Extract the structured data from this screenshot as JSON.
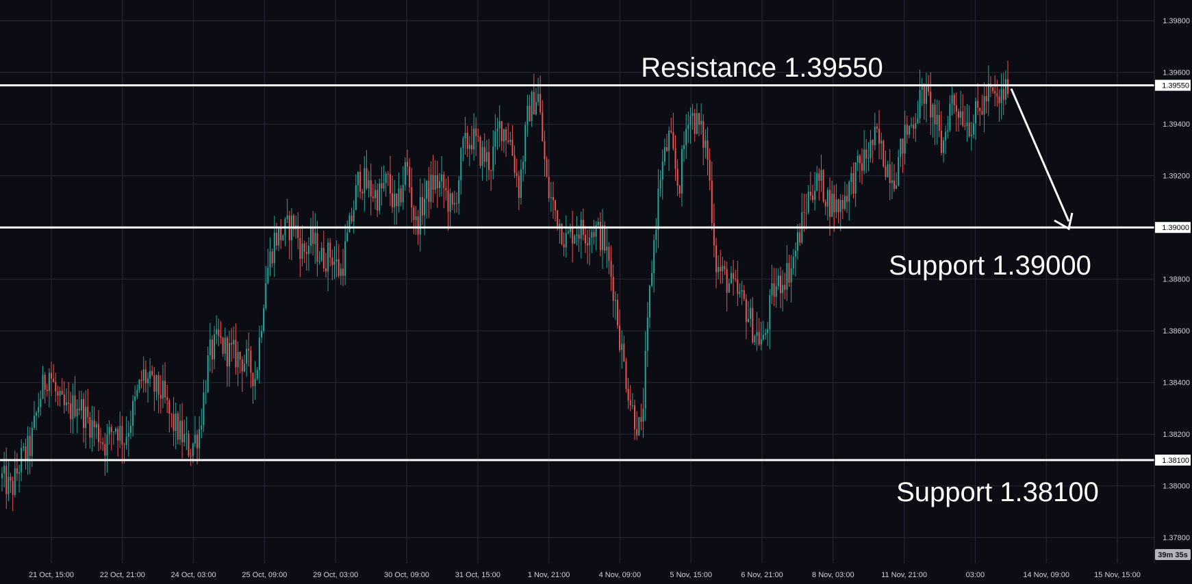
{
  "chart_data": {
    "type": "candlestick",
    "price_axis": {
      "ticks": [
        "1.39800",
        "1.39600",
        "1.39400",
        "1.39200",
        "1.39000",
        "1.38800",
        "1.38600",
        "1.38400",
        "1.38200",
        "1.38000",
        "1.37800"
      ],
      "ylim": [
        1.377,
        1.3988
      ]
    },
    "time_axis": {
      "ticks": [
        "21 Oct, 15:00",
        "22 Oct, 21:00",
        "24 Oct, 03:00",
        "25 Oct, 09:00",
        "29 Oct, 03:00",
        "30 Oct, 09:00",
        "31 Oct, 15:00",
        "1 Nov, 21:00",
        "4 Nov, 09:00",
        "5 Nov, 15:00",
        "6 Nov, 21:00",
        "8 Nov, 03:00",
        "11 Nov, 21:00",
        "03:00",
        "14 Nov, 09:00",
        "15 Nov, 15:00"
      ]
    },
    "levels": [
      {
        "name": "Resistance 1.39550",
        "value": 1.3955,
        "tag": "1.39550"
      },
      {
        "name": "Support 1.39000",
        "value": 1.39,
        "tag": "1.39000"
      },
      {
        "name": "Support 1.38100",
        "value": 1.381,
        "tag": "1.38100"
      }
    ],
    "annotations": {
      "resistance_label": "Resistance 1.39550",
      "support_mid_label": "Support 1.39000",
      "support_low_label": "Support 1.38100",
      "arrow_from": 1.3955,
      "arrow_to": 1.39
    },
    "countdown": "39m 35s",
    "price_path": [
      1.3803,
      1.3798,
      1.381,
      1.3815,
      1.3834,
      1.3845,
      1.3832,
      1.3828,
      1.3833,
      1.3826,
      1.3822,
      1.3816,
      1.3824,
      1.3818,
      1.383,
      1.3843,
      1.3838,
      1.3836,
      1.3825,
      1.382,
      1.3814,
      1.3822,
      1.385,
      1.3856,
      1.3852,
      1.385,
      1.3848,
      1.3842,
      1.388,
      1.3896,
      1.3898,
      1.3902,
      1.389,
      1.3895,
      1.3888,
      1.389,
      1.3882,
      1.39,
      1.392,
      1.3915,
      1.3912,
      1.3918,
      1.3905,
      1.3925,
      1.39,
      1.3912,
      1.3918,
      1.3915,
      1.3905,
      1.393,
      1.3935,
      1.3928,
      1.3925,
      1.394,
      1.3935,
      1.3915,
      1.3945,
      1.3952,
      1.3915,
      1.3905,
      1.3895,
      1.39,
      1.3898,
      1.39,
      1.3895,
      1.3878,
      1.385,
      1.383,
      1.382,
      1.388,
      1.392,
      1.3935,
      1.3915,
      1.3945,
      1.394,
      1.393,
      1.3885,
      1.388,
      1.3875,
      1.387,
      1.386,
      1.3855,
      1.3875,
      1.388,
      1.3885,
      1.39,
      1.3915,
      1.3918,
      1.391,
      1.3908,
      1.3915,
      1.3922,
      1.3928,
      1.3935,
      1.3925,
      1.392,
      1.3935,
      1.3942,
      1.3953,
      1.3945,
      1.393,
      1.395,
      1.3945,
      1.394,
      1.3945,
      1.3952,
      1.3948,
      1.3955
    ],
    "colors": {
      "up": "#26a69a",
      "down": "#ef5350",
      "line": "#ffffff",
      "grid": "#262a36",
      "background": "#0c0d14"
    }
  }
}
